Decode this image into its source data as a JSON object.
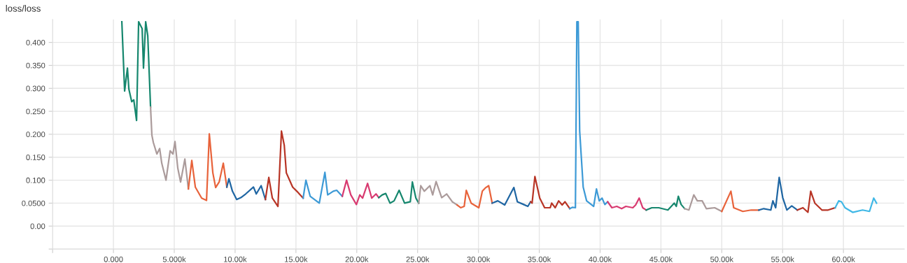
{
  "chart_data": {
    "type": "line",
    "title": "loss/loss",
    "xlim": [
      -5000,
      65000
    ],
    "ylim": [
      -0.05,
      0.45
    ],
    "xticks": [
      {
        "value": -5000,
        "label": null
      },
      {
        "value": 0,
        "label": "0.000"
      },
      {
        "value": 5000,
        "label": "5.000k"
      },
      {
        "value": 10000,
        "label": "10.00k"
      },
      {
        "value": 15000,
        "label": "15.00k"
      },
      {
        "value": 20000,
        "label": "20.00k"
      },
      {
        "value": 25000,
        "label": "25.00k"
      },
      {
        "value": 30000,
        "label": "30.00k"
      },
      {
        "value": 35000,
        "label": "35.00k"
      },
      {
        "value": 40000,
        "label": "40.00k"
      },
      {
        "value": 45000,
        "label": "45.00k"
      },
      {
        "value": 50000,
        "label": "50.00k"
      },
      {
        "value": 55000,
        "label": "55.00k"
      },
      {
        "value": 60000,
        "label": "60.00k"
      }
    ],
    "yticks": [
      {
        "value": -0.05,
        "label": null
      },
      {
        "value": 0,
        "label": "0.00"
      },
      {
        "value": 0.05,
        "label": "0.0500"
      },
      {
        "value": 0.1,
        "label": "0.100"
      },
      {
        "value": 0.15,
        "label": "0.150"
      },
      {
        "value": 0.2,
        "label": "0.200"
      },
      {
        "value": 0.25,
        "label": "0.250"
      },
      {
        "value": 0.3,
        "label": "0.300"
      },
      {
        "value": 0.35,
        "label": "0.350"
      },
      {
        "value": 0.4,
        "label": "0.400"
      }
    ],
    "grid": true,
    "series": [
      {
        "color": "#16876e",
        "x": [
          690,
          920,
          1150,
          1270,
          1500,
          1670,
          1900,
          2070,
          2360,
          2470,
          2650,
          2820,
          3050
        ],
        "values": [
          0.445,
          0.294,
          0.344,
          0.298,
          0.271,
          0.275,
          0.23,
          0.445,
          0.43,
          0.344,
          0.445,
          0.415,
          0.259
        ]
      },
      {
        "color": "#ab9b9b",
        "x": [
          3050,
          3160,
          3280,
          3570,
          3800,
          3970,
          4320,
          4660,
          4890,
          5060,
          5290,
          5520,
          5870,
          6160
        ],
        "values": [
          0.259,
          0.198,
          0.182,
          0.157,
          0.169,
          0.137,
          0.1,
          0.164,
          0.157,
          0.184,
          0.126,
          0.096,
          0.146,
          0.081
        ]
      },
      {
        "color": "#e8633b",
        "x": [
          6160,
          6440,
          6730,
          7250,
          7650,
          7880,
          8170,
          8400,
          8690,
          9030,
          9320
        ],
        "values": [
          0.081,
          0.143,
          0.085,
          0.061,
          0.056,
          0.201,
          0.116,
          0.084,
          0.096,
          0.137,
          0.085
        ]
      },
      {
        "color": "#1f66a3",
        "x": [
          9320,
          9490,
          9780,
          10130,
          10470,
          10870,
          11510,
          11740,
          12140,
          12490
        ],
        "values": [
          0.085,
          0.103,
          0.076,
          0.058,
          0.062,
          0.07,
          0.085,
          0.07,
          0.088,
          0.058
        ]
      },
      {
        "color": "#b83526",
        "x": [
          12490,
          12770,
          13060,
          13520,
          13810,
          14040,
          14210,
          14730,
          15070,
          15590
        ],
        "values": [
          0.058,
          0.106,
          0.061,
          0.043,
          0.207,
          0.176,
          0.116,
          0.085,
          0.076,
          0.061
        ]
      },
      {
        "color": "#3d9ad6",
        "x": [
          15590,
          15820,
          16170,
          16920,
          17380,
          17610,
          18070,
          18350,
          18810
        ],
        "values": [
          0.061,
          0.1,
          0.065,
          0.05,
          0.117,
          0.068,
          0.076,
          0.078,
          0.065
        ]
      },
      {
        "color": "#d83a70",
        "x": [
          18810,
          19160,
          19510,
          19970,
          20250,
          20480,
          20890,
          21230,
          21580,
          21810
        ],
        "values": [
          0.065,
          0.1,
          0.068,
          0.047,
          0.068,
          0.061,
          0.093,
          0.061,
          0.07,
          0.062
        ]
      },
      {
        "color": "#16876e",
        "x": [
          21810,
          22090,
          22380,
          22730,
          23070,
          23480,
          23930,
          24400,
          24570,
          24860,
          25090
        ],
        "values": [
          0.062,
          0.068,
          0.071,
          0.05,
          0.055,
          0.078,
          0.05,
          0.053,
          0.096,
          0.061,
          0.05
        ]
      },
      {
        "color": "#ab9b9b",
        "x": [
          25090,
          25260,
          25550,
          26010,
          26240,
          26520,
          26980,
          27390,
          27850,
          28250
        ],
        "values": [
          0.05,
          0.088,
          0.076,
          0.088,
          0.068,
          0.097,
          0.062,
          0.07,
          0.053,
          0.046
        ]
      },
      {
        "color": "#e8633b",
        "x": [
          28250,
          28540,
          28830,
          29000,
          29400,
          30030,
          30320,
          30610,
          30840,
          31130
        ],
        "values": [
          0.046,
          0.04,
          0.043,
          0.078,
          0.05,
          0.04,
          0.076,
          0.084,
          0.088,
          0.05
        ]
      },
      {
        "color": "#1f66a3",
        "x": [
          31130,
          31590,
          32160,
          32910,
          33200,
          33720,
          34060,
          34290
        ],
        "values": [
          0.05,
          0.055,
          0.046,
          0.084,
          0.053,
          0.047,
          0.043,
          0.053
        ]
      },
      {
        "color": "#b83526",
        "x": [
          34290,
          34410,
          34640,
          35040,
          35440,
          35900,
          36020,
          36310,
          36590,
          36880,
          37110,
          37510
        ],
        "values": [
          0.053,
          0.05,
          0.108,
          0.061,
          0.04,
          0.04,
          0.05,
          0.04,
          0.055,
          0.046,
          0.053,
          0.038
        ]
      },
      {
        "color": "#3d9ad6",
        "x": [
          37510,
          37740,
          37970,
          38090,
          38200,
          38320,
          38610,
          38890,
          39470,
          39700,
          39930,
          40160,
          40390,
          40620
        ],
        "values": [
          0.038,
          0.041,
          0.04,
          0.445,
          0.445,
          0.207,
          0.085,
          0.055,
          0.043,
          0.081,
          0.055,
          0.061,
          0.047,
          0.053
        ]
      },
      {
        "color": "#d83a70",
        "x": [
          40620,
          40970,
          41370,
          41770,
          42120,
          42690,
          42920,
          43210,
          43500,
          43790
        ],
        "values": [
          0.053,
          0.04,
          0.043,
          0.038,
          0.043,
          0.04,
          0.046,
          0.061,
          0.04,
          0.035
        ]
      },
      {
        "color": "#16876e",
        "x": [
          43790,
          44250,
          44820,
          45570,
          46090,
          46260,
          46430,
          46660,
          46950
        ],
        "values": [
          0.035,
          0.04,
          0.04,
          0.035,
          0.05,
          0.043,
          0.065,
          0.047,
          0.038
        ]
      },
      {
        "color": "#ab9b9b",
        "x": [
          46950,
          47300,
          47700,
          47990,
          48390,
          48730,
          49420,
          50000
        ],
        "values": [
          0.038,
          0.035,
          0.068,
          0.055,
          0.055,
          0.038,
          0.04,
          0.032
        ]
      },
      {
        "color": "#e8633b",
        "x": [
          50000,
          50750,
          50980,
          51730,
          52420,
          53050
        ],
        "values": [
          0.032,
          0.076,
          0.04,
          0.032,
          0.035,
          0.035
        ]
      },
      {
        "color": "#1f66a3",
        "x": [
          53050,
          53450,
          54030,
          54200,
          54430,
          54720,
          55010,
          55350,
          55750,
          56210
        ],
        "values": [
          0.035,
          0.038,
          0.035,
          0.055,
          0.04,
          0.106,
          0.062,
          0.035,
          0.044,
          0.035
        ]
      },
      {
        "color": "#b83526",
        "x": [
          56210,
          56670,
          57080,
          57310,
          57650,
          58230,
          58740,
          59320
        ],
        "values": [
          0.035,
          0.04,
          0.03,
          0.076,
          0.05,
          0.035,
          0.035,
          0.04
        ]
      },
      {
        "color": "#40b8e6",
        "x": [
          59320,
          59610,
          59840,
          60130,
          60760,
          61570,
          62140,
          62490,
          62720
        ],
        "values": [
          0.04,
          0.055,
          0.053,
          0.04,
          0.03,
          0.035,
          0.032,
          0.061,
          0.05
        ]
      }
    ]
  }
}
